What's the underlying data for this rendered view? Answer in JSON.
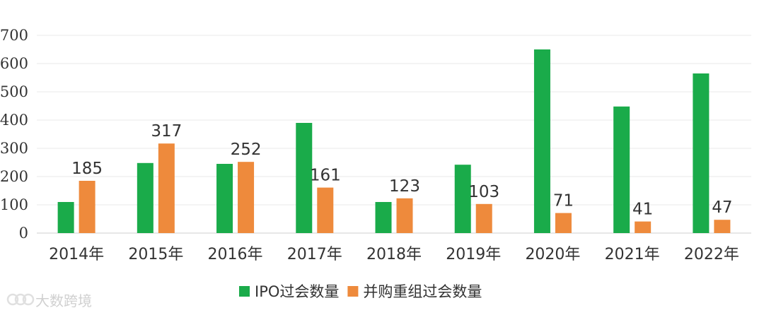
{
  "chart_data": {
    "type": "bar",
    "categories": [
      "2014年",
      "2015年",
      "2016年",
      "2017年",
      "2018年",
      "2019年",
      "2020年",
      "2021年",
      "2022年"
    ],
    "series": [
      {
        "name": "IPO过会数量",
        "color": "#1aab4a",
        "values": [
          110,
          248,
          245,
          390,
          110,
          242,
          650,
          448,
          565
        ]
      },
      {
        "name": "并购重组过会数量",
        "color": "#ee8a3c",
        "values": [
          185,
          317,
          252,
          161,
          123,
          103,
          71,
          41,
          47
        ],
        "labels": [
          "185",
          "317",
          "252",
          "161",
          "123",
          "103",
          "71",
          "41",
          "47"
        ]
      }
    ],
    "ylim": [
      0,
      700
    ],
    "yticks": [
      "0",
      "100",
      "200",
      "300",
      "400",
      "500",
      "600",
      "700"
    ],
    "grid": true,
    "legend_position": "bottom",
    "title": "",
    "xlabel": "",
    "ylabel": ""
  },
  "watermark": {
    "text": "大数跨境",
    "icon": "logo-icon"
  }
}
